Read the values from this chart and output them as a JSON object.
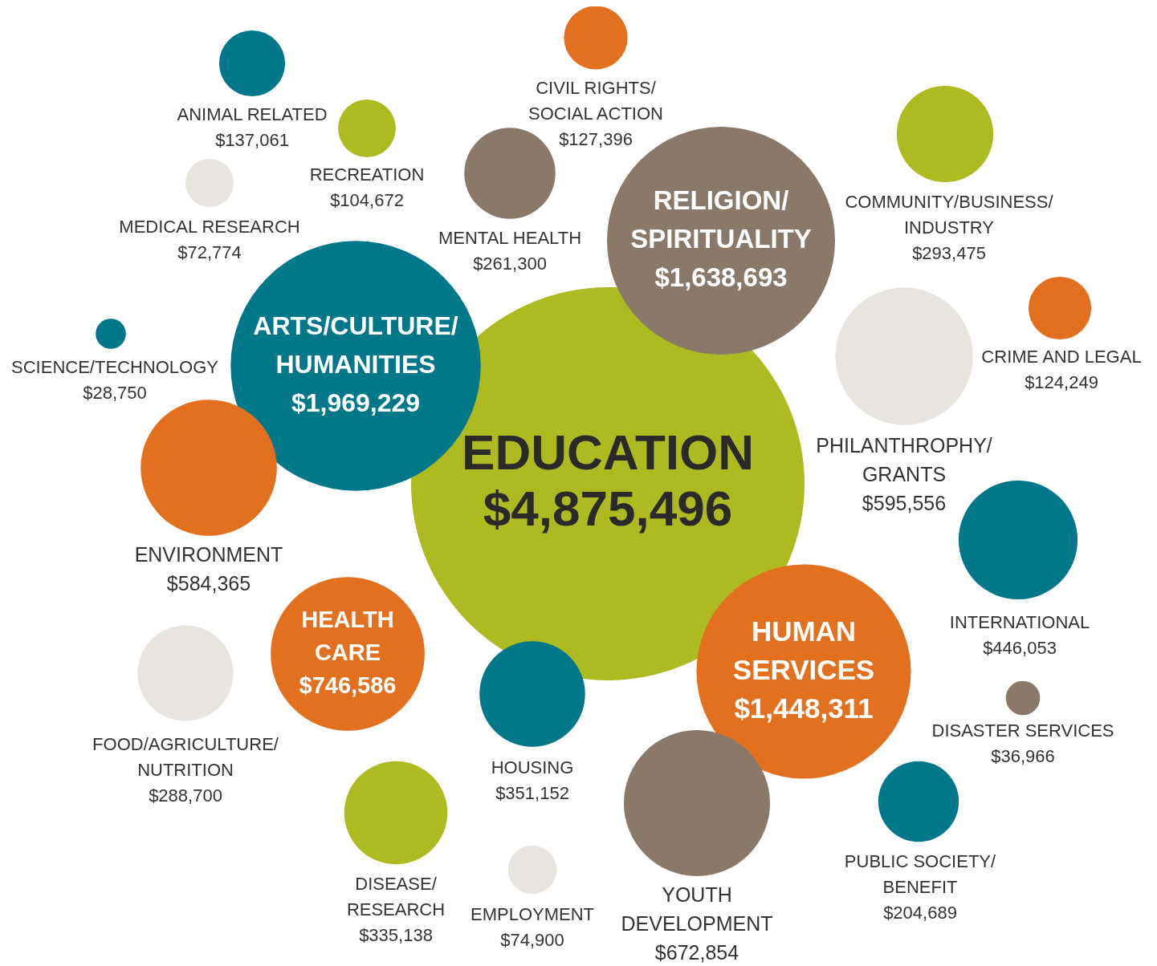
{
  "chart_data": {
    "type": "other",
    "categories": [
      "ANIMAL RELATED",
      "CIVIL RIGHTS/SOCIAL ACTION",
      "RECREATION",
      "MEDICAL RESEARCH",
      "MENTAL HEALTH",
      "RELIGION/SPIRITUALITY",
      "COMMUNITY/BUSINESS/INDUSTRY",
      "SCIENCE/TECHNOLOGY",
      "ARTS/CULTURE/HUMANITIES",
      "CRIME AND LEGAL",
      "PHILANTHROPHY/GRANTS",
      "EDUCATION",
      "ENVIRONMENT",
      "INTERNATIONAL",
      "HEALTH CARE",
      "HUMAN SERVICES",
      "FOOD/AGRICULTURE/NUTRITION",
      "HOUSING",
      "DISASTER SERVICES",
      "PUBLIC SOCIETY/BENEFIT",
      "DISEASE/RESEARCH",
      "EMPLOYMENT",
      "YOUTH DEVELOPMENT"
    ],
    "values": [
      137061,
      127396,
      104672,
      72774,
      261300,
      1638693,
      293475,
      28750,
      1969229,
      124249,
      595556,
      4875496,
      584365,
      446053,
      746586,
      1448311,
      288700,
      351152,
      36966,
      204689,
      335138,
      74900,
      672854
    ],
    "value_labels": [
      "$137,061",
      "$127,396",
      "$104,672",
      "$72,774",
      "$261,300",
      "$1,638,693",
      "$293,475",
      "$28,750",
      "$1,969,229",
      "$124,249",
      "$595,556",
      "$4,875,496",
      "$584,365",
      "$446,053",
      "$746,586",
      "$1,448,311",
      "$288,700",
      "$351,152",
      "$36,966",
      "$204,689",
      "$335,138",
      "$74,900",
      "$672,854"
    ],
    "colors": [
      "#00788a",
      "#e3701f",
      "#adbb21",
      "#e8e4df",
      "#8a7968",
      "#8a7968",
      "#adbb21",
      "#00788a",
      "#00788a",
      "#e3701f",
      "#e8e4df",
      "#adbb21",
      "#e3701f",
      "#00788a",
      "#e3701f",
      "#e3701f",
      "#e8e4df",
      "#00788a",
      "#8a7968",
      "#00788a",
      "#adbb21",
      "#e8e4df",
      "#8a7968"
    ]
  }
}
